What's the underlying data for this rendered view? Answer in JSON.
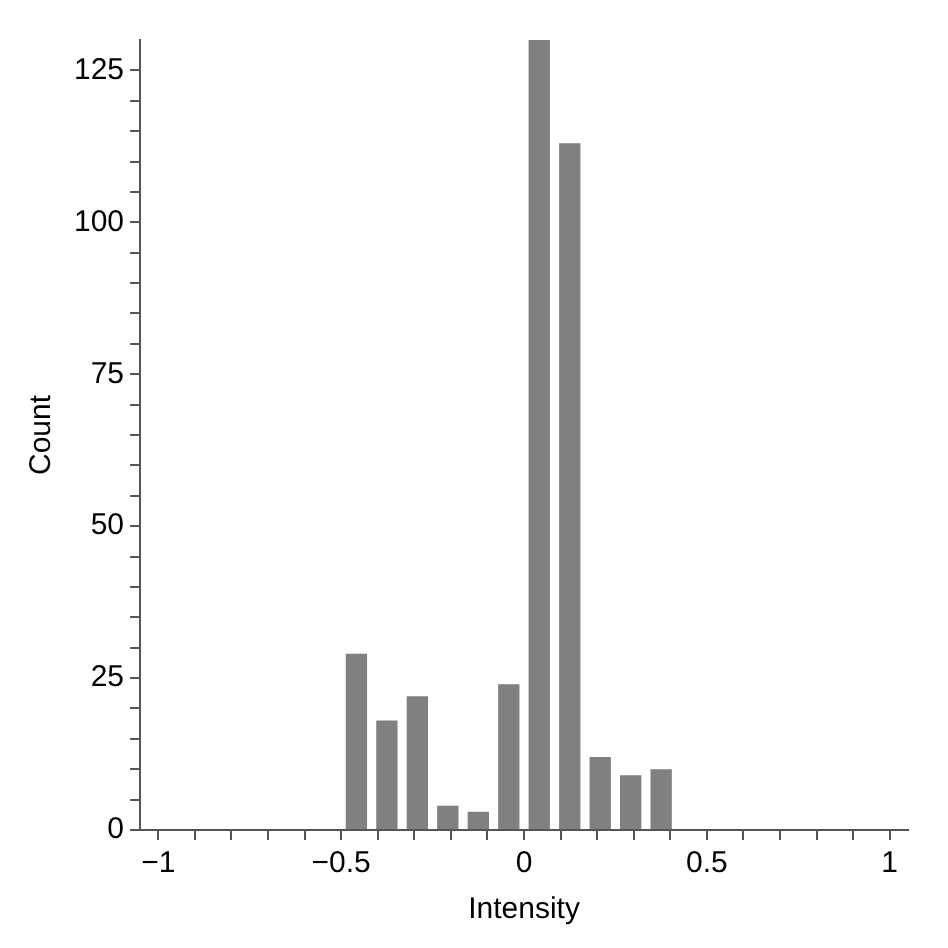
{
  "chart_data": {
    "type": "histogram",
    "xlabel": "Intensity",
    "ylabel": "Count",
    "color": "#808080",
    "bins": [
      -1,
      -0.9167,
      -0.8333,
      -0.75,
      -0.6667,
      -0.5833,
      -0.5,
      -0.4167,
      -0.3333,
      -0.25,
      -0.1667,
      -0.0833,
      0,
      0.0833,
      0.1667,
      0.25,
      0.3333,
      0.4167,
      0.5,
      0.5833,
      0.6667,
      0.75,
      0.8333,
      0.9167,
      1
    ],
    "values": [
      0,
      0,
      0,
      0,
      0,
      0,
      29,
      18,
      22,
      4,
      3,
      24,
      130,
      113,
      12,
      9,
      10,
      0,
      0,
      0,
      0,
      0,
      0,
      0
    ],
    "xlim": [
      -1.05,
      1.05
    ],
    "ylim": [
      0,
      130
    ],
    "xticks": [
      -1,
      {
        "value": -0.9,
        "label": null
      },
      {
        "value": -0.8,
        "label": null
      },
      {
        "value": -0.7,
        "label": null
      },
      {
        "value": -0.6,
        "label": null
      },
      {
        "value": -0.5,
        "label": "−0.5"
      },
      {
        "value": -0.4,
        "label": null
      },
      {
        "value": -0.3,
        "label": null
      },
      {
        "value": -0.2,
        "label": null
      },
      {
        "value": -0.1,
        "label": null
      },
      0,
      {
        "value": 0.1,
        "label": null
      },
      {
        "value": 0.2,
        "label": null
      },
      {
        "value": 0.3,
        "label": null
      },
      {
        "value": 0.4,
        "label": null
      },
      0.5,
      {
        "value": 0.6,
        "label": null
      },
      {
        "value": 0.7,
        "label": null
      },
      {
        "value": 0.8,
        "label": null
      },
      {
        "value": 0.9,
        "label": null
      },
      1
    ],
    "yticks": [
      0,
      {
        "value": 5,
        "label": null
      },
      {
        "value": 10,
        "label": null
      },
      {
        "value": 15,
        "label": null
      },
      {
        "value": 20,
        "label": null
      },
      25,
      {
        "value": 30,
        "label": null
      },
      {
        "value": 35,
        "label": null
      },
      {
        "value": 40,
        "label": null
      },
      {
        "value": 45,
        "label": null
      },
      50,
      {
        "value": 55,
        "label": null
      },
      {
        "value": 60,
        "label": null
      },
      {
        "value": 65,
        "label": null
      },
      {
        "value": 70,
        "label": null
      },
      75,
      {
        "value": 80,
        "label": null
      },
      {
        "value": 85,
        "label": null
      },
      {
        "value": 90,
        "label": null
      },
      {
        "value": 95,
        "label": null
      },
      100,
      {
        "value": 105,
        "label": null
      },
      {
        "value": 110,
        "label": null
      },
      {
        "value": 115,
        "label": null
      },
      {
        "value": 120,
        "label": null
      },
      125
    ]
  }
}
